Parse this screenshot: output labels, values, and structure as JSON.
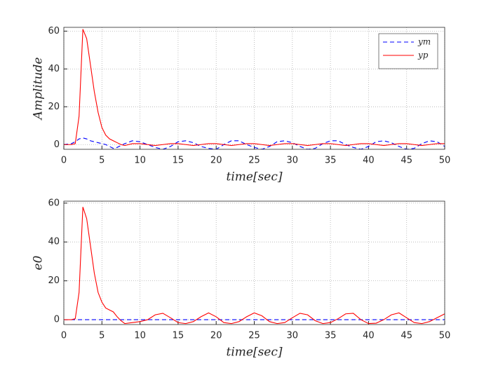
{
  "chart_data": [
    {
      "type": "line",
      "ylabel": "Amplitude",
      "xlabel": "time[sec]",
      "x": [
        0,
        1,
        1.5,
        2,
        2.5,
        3,
        3.5,
        4,
        4.5,
        5,
        5.5,
        6,
        6.5,
        7,
        7.5,
        8,
        9,
        10,
        11,
        12,
        13,
        14,
        15,
        16,
        17,
        18,
        19,
        20,
        21,
        22,
        23,
        24,
        25,
        26,
        27,
        28,
        29,
        30,
        31,
        32,
        33,
        34,
        35,
        36,
        37,
        38,
        39,
        40,
        41,
        42,
        43,
        44,
        45,
        46,
        47,
        48,
        49,
        50
      ],
      "series": [
        {
          "name": "ym",
          "color": "#0000ff",
          "style": "dashed",
          "values": [
            0,
            0.5,
            1.5,
            3,
            3.5,
            3,
            2,
            1.5,
            1,
            0.5,
            0,
            -1,
            -2,
            -1.5,
            -0.5,
            0.5,
            2,
            1.5,
            0,
            -1.5,
            -2.5,
            -1,
            1.5,
            2,
            1,
            -1,
            -2,
            -2.5,
            0,
            2,
            2,
            0,
            -1.5,
            -2.5,
            -1,
            1.5,
            2,
            1,
            -1,
            -2.5,
            -2,
            0.5,
            2,
            2,
            0,
            -1.5,
            -2.5,
            -1,
            1.5,
            2,
            1,
            -1,
            -2.5,
            -2,
            0.5,
            2,
            1.5,
            -1
          ]
        },
        {
          "name": "yp",
          "color": "#ff0000",
          "style": "solid",
          "values": [
            0,
            0,
            0.5,
            15,
            61,
            56,
            42,
            28,
            17,
            9,
            5,
            3,
            2,
            1,
            0,
            -0.5,
            0.5,
            0.5,
            0,
            -0.5,
            0,
            0.5,
            0.5,
            0,
            -0.5,
            0,
            0.5,
            0.5,
            0,
            -0.5,
            0,
            0.5,
            0.5,
            0,
            -0.5,
            0,
            0.5,
            0.5,
            0,
            -0.5,
            0,
            0.5,
            0.5,
            0,
            -0.5,
            0,
            0.5,
            0.5,
            0,
            -0.5,
            0,
            0.5,
            0.5,
            0,
            -0.5,
            0,
            0.5,
            0.5
          ]
        }
      ],
      "xlim": [
        0,
        50
      ],
      "xticks": [
        0,
        5,
        10,
        15,
        20,
        25,
        30,
        35,
        40,
        45,
        50
      ],
      "ylim": [
        -2.5,
        62
      ],
      "yticks": [
        0,
        20,
        40,
        60
      ],
      "grid": true,
      "legend": "northeast"
    },
    {
      "type": "line",
      "ylabel": "e0",
      "xlabel": "time[sec]",
      "x": [
        0,
        1,
        1.5,
        2,
        2.5,
        3,
        3.5,
        4,
        4.5,
        5,
        5.5,
        6,
        6.5,
        7,
        7.5,
        8,
        9,
        10,
        11,
        12,
        13,
        14,
        15,
        16,
        17,
        18,
        19,
        20,
        21,
        22,
        23,
        24,
        25,
        26,
        27,
        28,
        29,
        30,
        31,
        32,
        33,
        34,
        35,
        36,
        37,
        38,
        39,
        40,
        41,
        42,
        43,
        44,
        45,
        46,
        47,
        48,
        49,
        50
      ],
      "series": [
        {
          "color": "#0000ff",
          "style": "dashed",
          "values": [
            0,
            0,
            0,
            0,
            0,
            0,
            0,
            0,
            0,
            0,
            0,
            0,
            0,
            0,
            0,
            0,
            0,
            0,
            0,
            0,
            0,
            0,
            0,
            0,
            0,
            0,
            0,
            0,
            0,
            0,
            0,
            0,
            0,
            0,
            0,
            0,
            0,
            0,
            0,
            0,
            0,
            0,
            0,
            0,
            0,
            0,
            0,
            0,
            0,
            0,
            0,
            0,
            0,
            0,
            0,
            0,
            0,
            0
          ]
        },
        {
          "color": "#ff0000",
          "style": "solid",
          "values": [
            0,
            0,
            0.5,
            14,
            58,
            52,
            38,
            24,
            14,
            9,
            6,
            5,
            4,
            1.5,
            -0.5,
            -2,
            -1.5,
            -1,
            0,
            2.5,
            3.3,
            1,
            -1.5,
            -2,
            -1,
            1.5,
            3.5,
            1.5,
            -1.5,
            -2,
            -1,
            1.5,
            3.5,
            2,
            -1,
            -2,
            -1.5,
            1,
            3.3,
            2.5,
            -0.5,
            -2,
            -1.5,
            0.5,
            3,
            3.3,
            0,
            -2,
            -1.8,
            0,
            2.5,
            3.5,
            1,
            -1.5,
            -2,
            -1,
            1,
            3
          ]
        }
      ],
      "xlim": [
        0,
        50
      ],
      "xticks": [
        0,
        5,
        10,
        15,
        20,
        25,
        30,
        35,
        40,
        45,
        50
      ],
      "ylim": [
        -2.5,
        61
      ],
      "yticks": [
        0,
        20,
        40,
        60
      ],
      "grid": true
    }
  ]
}
